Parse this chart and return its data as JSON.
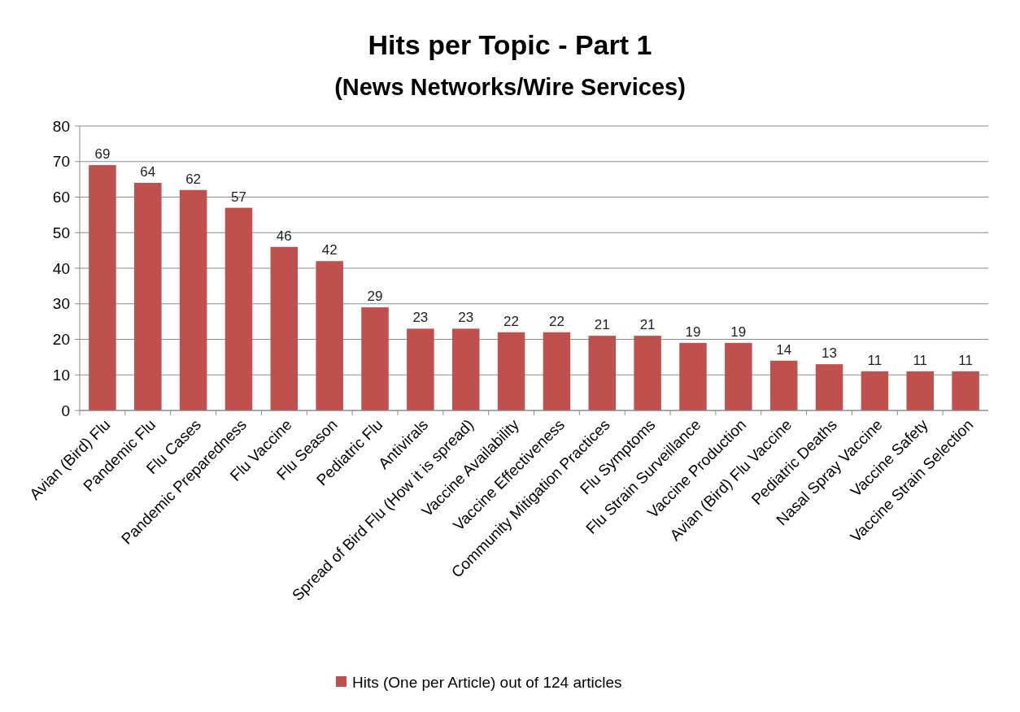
{
  "chart_data": {
    "type": "bar",
    "title": "Hits per Topic - Part 1",
    "subtitle": "(News Networks/Wire Services)",
    "categories": [
      "Avian (Bird) Flu",
      "Pandemic Flu",
      "Flu Cases",
      "Pandemic Preparedness",
      "Flu Vaccine",
      "Flu Season",
      "Pediatric Flu",
      "Antivirals",
      "Spread of Bird Flu (How it is spread)",
      "Vaccine Availability",
      "Vaccine Effectiveness",
      "Community Mitigation Practices",
      "Flu Symptoms",
      "Flu Strain Surveillance",
      "Vaccine Production",
      "Avian (Bird) Flu Vaccine",
      "Pediatric Deaths",
      "Nasal Spray Vaccine",
      "Vaccine Safety",
      "Vaccine Strain Selection"
    ],
    "series": [
      {
        "name": "Hits (One per Article) out of 124 articles",
        "color": "#c0504d",
        "values": [
          69,
          64,
          62,
          57,
          46,
          42,
          29,
          23,
          23,
          22,
          22,
          21,
          21,
          19,
          19,
          14,
          13,
          11,
          11,
          11
        ]
      }
    ],
    "ylim": [
      0,
      80
    ],
    "yticks": [
      0,
      10,
      20,
      30,
      40,
      50,
      60,
      70,
      80
    ],
    "grid": "y",
    "legend": "bottom",
    "data_labels": true
  }
}
